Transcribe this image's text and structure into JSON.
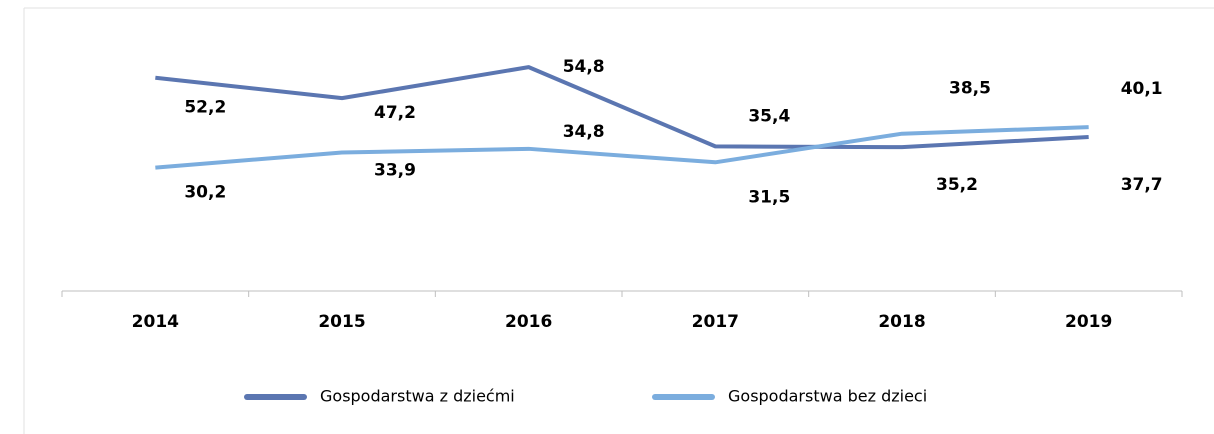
{
  "chart_data": {
    "type": "line",
    "categories": [
      "2014",
      "2015",
      "2016",
      "2017",
      "2018",
      "2019"
    ],
    "series": [
      {
        "name": "Gospodarstwa z dziećmi",
        "color": "#5b76b1",
        "values": [
          52.2,
          47.2,
          54.8,
          35.4,
          35.2,
          37.7
        ],
        "value_labels": [
          "52,2",
          "47,2",
          "54,8",
          "35,4",
          "35,2",
          "37,7"
        ]
      },
      {
        "name": "Gospodarstwa bez dzieci",
        "color": "#7badde",
        "values": [
          30.2,
          33.9,
          34.8,
          31.5,
          38.5,
          40.1
        ],
        "value_labels": [
          "30,2",
          "33,9",
          "34,8",
          "31,5",
          "38,5",
          "40,1"
        ]
      }
    ],
    "ylim": [
      0,
      70
    ],
    "legend": "bottom"
  }
}
